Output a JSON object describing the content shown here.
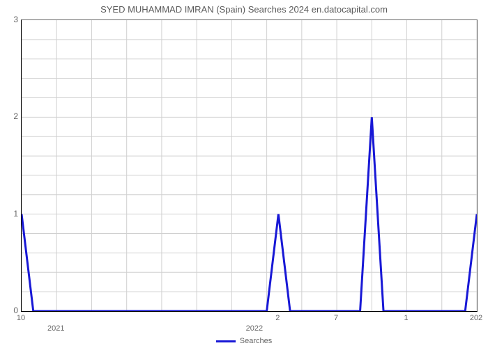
{
  "chart": {
    "type": "line",
    "title": "SYED MUHAMMAD IMRAN (Spain) Searches 2024 en.datocapital.com",
    "title_fontsize": 13,
    "title_color": "#5a5a5a",
    "background_color": "#ffffff",
    "grid_color": "#d0d0d0",
    "axis_color": "#000000",
    "plot_border_color": "#666666",
    "line_color": "#1818d6",
    "line_width": 3,
    "ylim": [
      0,
      3
    ],
    "ytick_step": 1,
    "yticks": [
      "0",
      "1",
      "2",
      "3"
    ],
    "x_range_months": 40,
    "x_points": [
      0,
      1,
      2,
      3,
      4,
      5,
      6,
      7,
      8,
      9,
      10,
      11,
      12,
      13,
      14,
      15,
      16,
      17,
      18,
      19,
      20,
      21,
      22,
      23,
      24,
      25,
      26,
      27,
      28,
      29,
      30,
      31,
      32,
      33,
      34,
      35,
      36,
      37,
      38,
      39
    ],
    "y_points": [
      1,
      0,
      0,
      0,
      0,
      0,
      0,
      0,
      0,
      0,
      0,
      0,
      0,
      0,
      0,
      0,
      0,
      0,
      0,
      0,
      0,
      0,
      1,
      0,
      0,
      0,
      0,
      0,
      0,
      0,
      2,
      0,
      0,
      0,
      0,
      0,
      0,
      0,
      0,
      1
    ],
    "x_month_ticks": [
      {
        "pos": 0,
        "label": "10"
      },
      {
        "pos": 22,
        "label": "2"
      },
      {
        "pos": 27,
        "label": "7"
      },
      {
        "pos": 33,
        "label": "1"
      },
      {
        "pos": 39,
        "label": "202"
      }
    ],
    "x_year_ticks": [
      {
        "pos": 3,
        "label": "2021"
      },
      {
        "pos": 20,
        "label": "2022"
      }
    ],
    "legend_label": "Searches",
    "tick_font_color": "#666666",
    "tick_fontsize": 11
  }
}
